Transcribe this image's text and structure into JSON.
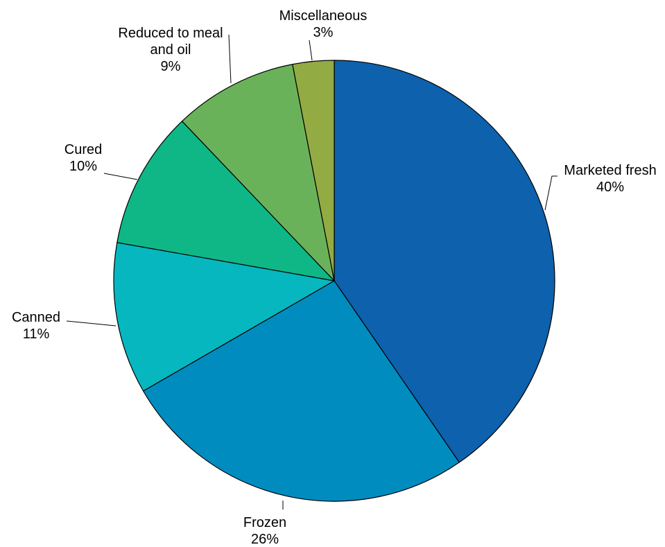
{
  "chart_data": {
    "type": "pie",
    "title": "",
    "start_angle_deg": 0,
    "direction": "clockwise",
    "legend": "none",
    "slices": [
      {
        "name": "Marketed fresh",
        "lines": [
          "Marketed fresh"
        ],
        "value": 40,
        "value_label": "40%",
        "color": "#0d61ad"
      },
      {
        "name": "Frozen",
        "lines": [
          "Frozen"
        ],
        "value": 26,
        "value_label": "26%",
        "color": "#018cc0"
      },
      {
        "name": "Canned",
        "lines": [
          "Canned"
        ],
        "value": 11,
        "value_label": "11%",
        "color": "#06b7bf"
      },
      {
        "name": "Cured",
        "lines": [
          "Cured"
        ],
        "value": 10,
        "value_label": "10%",
        "color": "#10b786"
      },
      {
        "name": "Reduced to meal and oil",
        "lines": [
          "Reduced to meal",
          "and oil"
        ],
        "value": 9,
        "value_label": "9%",
        "color": "#6ab25a"
      },
      {
        "name": "Miscellaneous",
        "lines": [
          "Miscellaneous"
        ],
        "value": 3,
        "value_label": "3%",
        "color": "#93ab43"
      }
    ]
  }
}
